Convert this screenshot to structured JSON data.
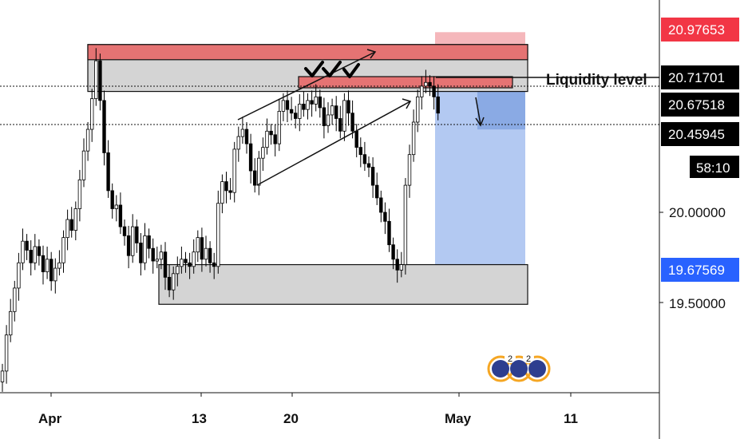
{
  "chart_data": {
    "type": "candlestick",
    "title": "",
    "xlabel": "",
    "ylabel": "",
    "x_ticks": [
      "Apr",
      "13",
      "20",
      "May",
      "11"
    ],
    "y_ticks": [
      "20.00000",
      "19.50000"
    ],
    "price_labels": [
      {
        "value": 20.97653,
        "text": "20.97653",
        "bg": "#f23645",
        "fg": "#ffffff"
      },
      {
        "value": 20.71701,
        "text": "20.71701",
        "bg": "#000000",
        "fg": "#ffffff"
      },
      {
        "value": 20.67518,
        "text": "20.67518",
        "bg": "#000000",
        "fg": "#ffffff"
      },
      {
        "value": 20.45945,
        "text": "20.45945",
        "bg": "#000000",
        "fg": "#ffffff"
      },
      {
        "value": 19.67569,
        "text": "19.67569",
        "bg": "#2962ff",
        "fg": "#ffffff"
      }
    ],
    "countdown": "58:10",
    "annotations": {
      "liquidity_label": "Liquidity level",
      "checkmarks": 3,
      "supply_zone": [
        20.67,
        20.93
      ],
      "demand_zone": [
        19.49,
        19.71
      ],
      "position": {
        "side": "short",
        "entry": 20.71701,
        "stop": 20.97653,
        "target": 19.67569
      }
    },
    "series_close": [
      19.12,
      19.32,
      19.45,
      19.58,
      19.72,
      19.84,
      19.79,
      19.72,
      19.81,
      19.76,
      19.67,
      19.74,
      19.62,
      19.69,
      19.72,
      19.86,
      19.96,
      19.9,
      20.02,
      20.18,
      20.34,
      20.46,
      20.63,
      20.84,
      20.62,
      20.33,
      20.12,
      20.02,
      20.04,
      19.92,
      19.87,
      19.76,
      19.92,
      19.83,
      19.72,
      19.87,
      19.8,
      19.73,
      19.74,
      19.78,
      19.64,
      19.57,
      19.66,
      19.7,
      19.74,
      19.72,
      19.7,
      19.78,
      19.86,
      19.74,
      19.8,
      19.72,
      19.7,
      20.05,
      20.17,
      20.12,
      20.11,
      20.35,
      20.42,
      20.46,
      20.38,
      20.23,
      20.15,
      20.3,
      20.36,
      20.45,
      20.43,
      20.38,
      20.56,
      20.62,
      20.57,
      20.55,
      20.52,
      20.6,
      20.57,
      20.62,
      20.6,
      20.64,
      20.58,
      20.48,
      20.54,
      20.59,
      20.52,
      20.45,
      20.62,
      20.55,
      20.45,
      20.36,
      20.32,
      20.27,
      20.25,
      20.15,
      20.08,
      20.0,
      19.95,
      19.82,
      19.74,
      19.68,
      19.71,
      20.15,
      20.32,
      20.5,
      20.64,
      20.7,
      20.72,
      20.7,
      20.64,
      20.55
    ]
  },
  "colors": {
    "candle": "#000000",
    "supply_fill": "#e57373",
    "zone_fill": "#d4d4d4",
    "stop_fill": "#f5b7bb",
    "target_fill": "#b3c9f2",
    "target_dark": "#7fa3e0"
  },
  "icons": [
    "target-logo-icon"
  ]
}
